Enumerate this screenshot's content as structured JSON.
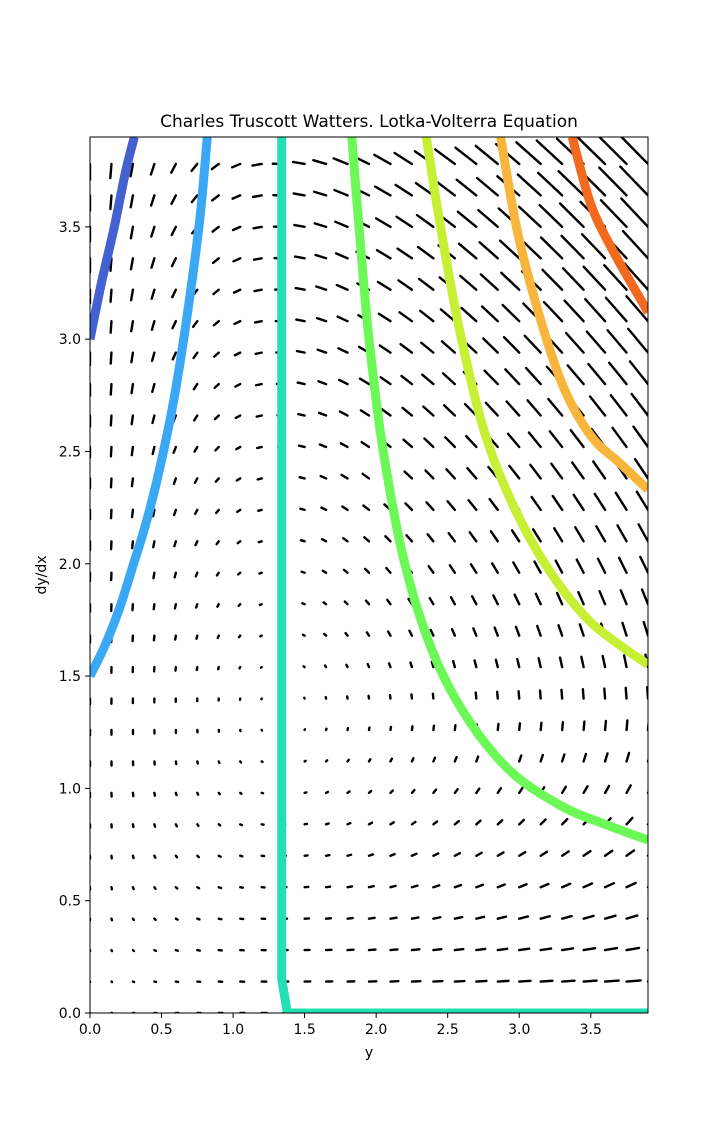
{
  "chart_data": {
    "type": "quiver",
    "title": "Charles Truscott Watters. Lotka-Volterra Equation",
    "xlabel": "y",
    "ylabel": "dy/dx",
    "xlim": [
      0,
      3.9
    ],
    "ylim": [
      0,
      3.9
    ],
    "xticks": [
      0.0,
      0.5,
      1.0,
      1.5,
      2.0,
      2.5,
      3.0,
      3.5
    ],
    "xtick_labels": [
      "0.0",
      "0.5",
      "1.0",
      "1.5",
      "2.0",
      "2.5",
      "3.0",
      "3.5"
    ],
    "yticks": [
      0.0,
      0.5,
      1.0,
      1.5,
      2.0,
      2.5,
      3.0,
      3.5
    ],
    "ytick_labels": [
      "0.0",
      "0.5",
      "1.0",
      "1.5",
      "2.0",
      "2.5",
      "3.0",
      "3.5"
    ],
    "grid": false,
    "vector_field": {
      "x_start": 0.0,
      "x_step": 0.15,
      "x_count": 27,
      "y_start": 0.0,
      "y_step": 0.14,
      "y_count": 28,
      "parameters": {
        "alpha": 1.0,
        "beta": 0.75,
        "gamma": 1.0,
        "delta": 0.75
      },
      "arrow_color": "#000000"
    },
    "series": [
      {
        "color": "#4361d1",
        "points": [
          [
            0.0,
            3.0
          ],
          [
            0.08,
            3.25
          ],
          [
            0.17,
            3.5
          ],
          [
            0.25,
            3.75
          ],
          [
            0.31,
            3.9
          ]
        ]
      },
      {
        "color": "#3aa8f5",
        "points": [
          [
            0.0,
            1.5
          ],
          [
            0.1,
            1.63
          ],
          [
            0.2,
            1.79
          ],
          [
            0.3,
            1.99
          ],
          [
            0.4,
            2.2
          ],
          [
            0.5,
            2.46
          ],
          [
            0.6,
            2.78
          ],
          [
            0.7,
            3.2
          ],
          [
            0.77,
            3.55
          ],
          [
            0.82,
            3.9
          ]
        ]
      },
      {
        "color": "#22e0b4",
        "points": [
          [
            1.34,
            3.9
          ],
          [
            1.34,
            0.15
          ],
          [
            1.38,
            0.0
          ],
          [
            3.9,
            0.0
          ]
        ]
      },
      {
        "color": "#6cf957",
        "points": [
          [
            1.83,
            3.9
          ],
          [
            1.88,
            3.5
          ],
          [
            1.95,
            3.0
          ],
          [
            2.05,
            2.5
          ],
          [
            2.2,
            2.0
          ],
          [
            2.4,
            1.6
          ],
          [
            2.65,
            1.3
          ],
          [
            2.95,
            1.07
          ],
          [
            3.3,
            0.92
          ],
          [
            3.6,
            0.84
          ],
          [
            3.9,
            0.77
          ]
        ]
      },
      {
        "color": "#c7ef34",
        "points": [
          [
            2.35,
            3.9
          ],
          [
            2.45,
            3.5
          ],
          [
            2.58,
            3.05
          ],
          [
            2.75,
            2.6
          ],
          [
            2.95,
            2.27
          ],
          [
            3.2,
            1.98
          ],
          [
            3.5,
            1.74
          ],
          [
            3.9,
            1.55
          ]
        ]
      },
      {
        "color": "#f8b53c",
        "points": [
          [
            2.87,
            3.9
          ],
          [
            2.98,
            3.5
          ],
          [
            3.12,
            3.15
          ],
          [
            3.3,
            2.8
          ],
          [
            3.5,
            2.57
          ],
          [
            3.7,
            2.45
          ],
          [
            3.9,
            2.33
          ]
        ]
      },
      {
        "color": "#f3691d",
        "points": [
          [
            3.37,
            3.9
          ],
          [
            3.5,
            3.6
          ],
          [
            3.65,
            3.4
          ],
          [
            3.8,
            3.23
          ],
          [
            3.9,
            3.12
          ]
        ]
      }
    ]
  }
}
